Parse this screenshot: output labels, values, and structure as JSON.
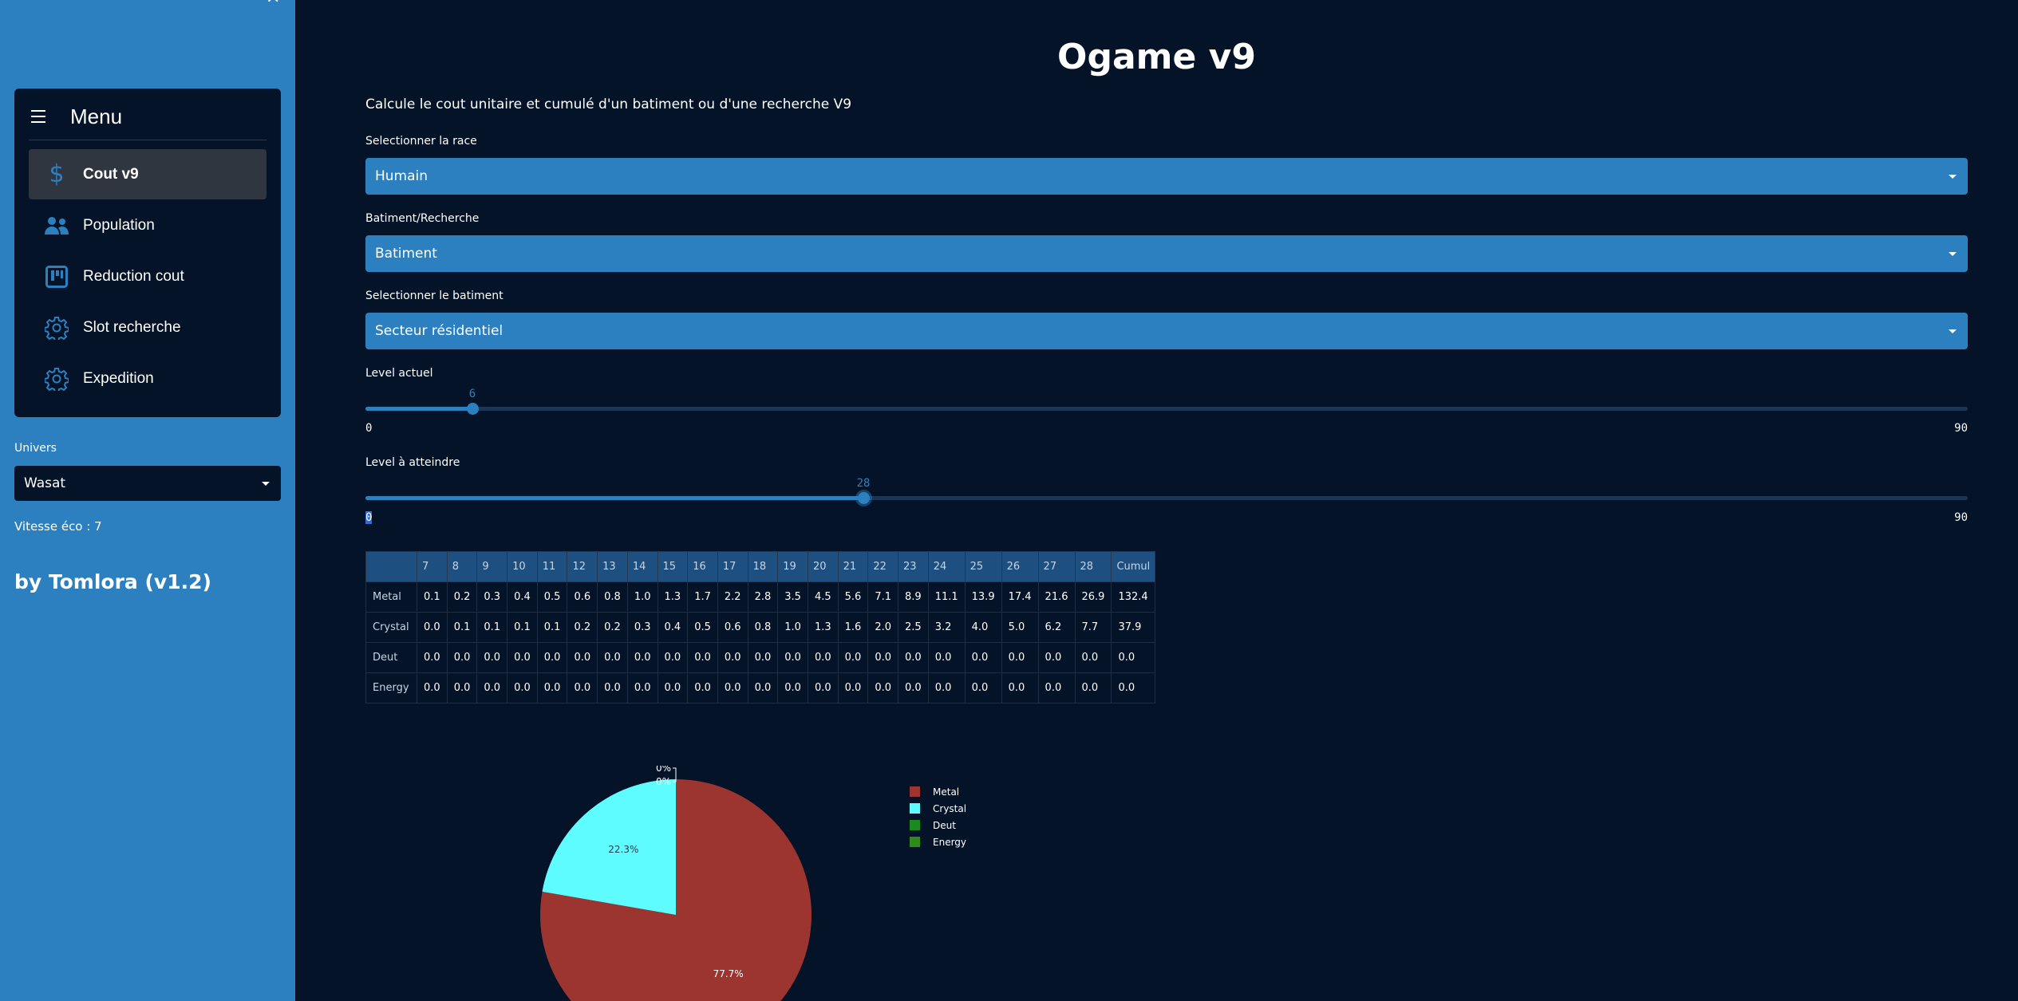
{
  "sidebar": {
    "close_icon": "close-icon",
    "menu": {
      "title": "Menu",
      "items": [
        {
          "label": "Cout v9",
          "icon": "dollar-icon",
          "active": true
        },
        {
          "label": "Population",
          "icon": "people-icon",
          "active": false
        },
        {
          "label": "Reduction cout",
          "icon": "kanban-icon",
          "active": false
        },
        {
          "label": "Slot recherche",
          "icon": "gear-icon",
          "active": false
        },
        {
          "label": "Expedition",
          "icon": "gear-icon",
          "active": false
        }
      ]
    },
    "univers": {
      "label": "Univers",
      "value": "Wasat"
    },
    "vitesse": "Vitesse éco : 7",
    "byline": "by Tomlora (v1.2)"
  },
  "main": {
    "title": "Ogame v9",
    "subtitle": "Calcule le cout unitaire et cumulé d'un batiment ou d'une recherche V9",
    "race": {
      "label": "Selectionner la race",
      "value": "Humain"
    },
    "type": {
      "label": "Batiment/Recherche",
      "value": "Batiment"
    },
    "batiment": {
      "label": "Selectionner le batiment",
      "value": "Secteur résidentiel"
    },
    "level_actuel": {
      "label": "Level actuel",
      "value": "6",
      "min": "0",
      "max": "90",
      "fraction": 0.0667
    },
    "level_cible": {
      "label": "Level à atteindre",
      "value": "28",
      "min": "0",
      "max": "90",
      "fraction": 0.311
    }
  },
  "table": {
    "columns": [
      "",
      "7",
      "8",
      "9",
      "10",
      "11",
      "12",
      "13",
      "14",
      "15",
      "16",
      "17",
      "18",
      "19",
      "20",
      "21",
      "22",
      "23",
      "24",
      "25",
      "26",
      "27",
      "28",
      "Cumul"
    ],
    "rows": [
      [
        "Metal",
        "0.1",
        "0.2",
        "0.3",
        "0.4",
        "0.5",
        "0.6",
        "0.8",
        "1.0",
        "1.3",
        "1.7",
        "2.2",
        "2.8",
        "3.5",
        "4.5",
        "5.6",
        "7.1",
        "8.9",
        "11.1",
        "13.9",
        "17.4",
        "21.6",
        "26.9",
        "132.4"
      ],
      [
        "Crystal",
        "0.0",
        "0.1",
        "0.1",
        "0.1",
        "0.1",
        "0.2",
        "0.2",
        "0.3",
        "0.4",
        "0.5",
        "0.6",
        "0.8",
        "1.0",
        "1.3",
        "1.6",
        "2.0",
        "2.5",
        "3.2",
        "4.0",
        "5.0",
        "6.2",
        "7.7",
        "37.9"
      ],
      [
        "Deut",
        "0.0",
        "0.0",
        "0.0",
        "0.0",
        "0.0",
        "0.0",
        "0.0",
        "0.0",
        "0.0",
        "0.0",
        "0.0",
        "0.0",
        "0.0",
        "0.0",
        "0.0",
        "0.0",
        "0.0",
        "0.0",
        "0.0",
        "0.0",
        "0.0",
        "0.0",
        "0.0"
      ],
      [
        "Energy",
        "0.0",
        "0.0",
        "0.0",
        "0.0",
        "0.0",
        "0.0",
        "0.0",
        "0.0",
        "0.0",
        "0.0",
        "0.0",
        "0.0",
        "0.0",
        "0.0",
        "0.0",
        "0.0",
        "0.0",
        "0.0",
        "0.0",
        "0.0",
        "0.0",
        "0.0",
        "0.0"
      ]
    ]
  },
  "chart_data": {
    "type": "pie",
    "categories": [
      "Metal",
      "Crystal",
      "Deut",
      "Energy"
    ],
    "values": [
      132.4,
      37.9,
      0.0,
      0.0
    ],
    "labels": [
      "77.7%",
      "22.3%",
      "0%",
      "0%"
    ],
    "colors": [
      "#9c3530",
      "#5ffcff",
      "#1a8a1f",
      "#2f8a1c"
    ],
    "legend": "right"
  }
}
